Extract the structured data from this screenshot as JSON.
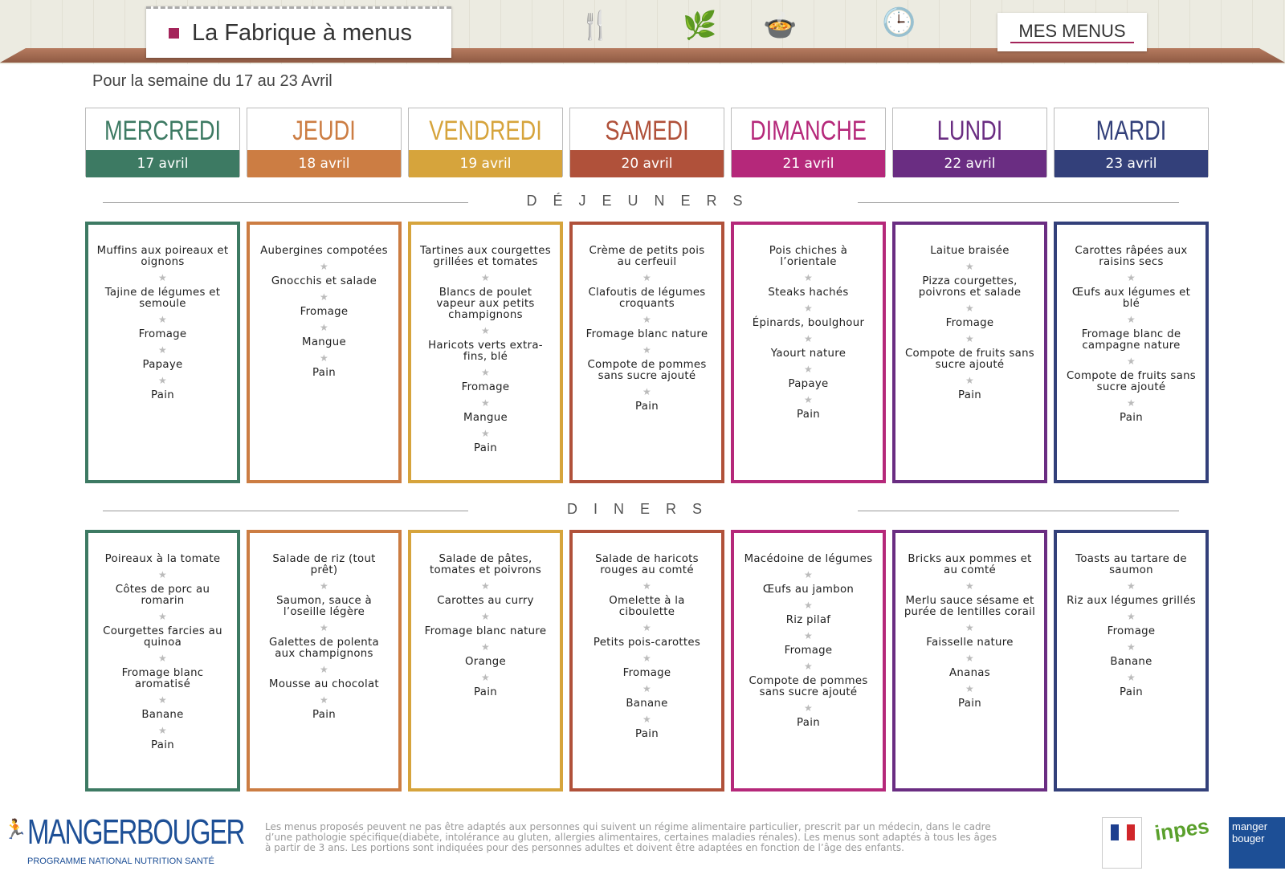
{
  "header": {
    "title": "La Fabrique à menus",
    "mes_menus": "MES MENUS"
  },
  "week_label": "Pour la semaine du 17 au 23 Avril",
  "sections": {
    "lunch": "DÉJEUNERS",
    "dinner": "DINERS"
  },
  "star": "★",
  "days": [
    {
      "name": "MERCREDI",
      "date": "17 avril",
      "color": "#3d7a63",
      "lunch": [
        "Muffins aux poireaux et oignons",
        "Tajine de légumes et semoule",
        "Fromage",
        "Papaye",
        "Pain"
      ],
      "dinner": [
        "Poireaux à la tomate",
        "Côtes de porc au romarin",
        "Courgettes farcies au quinoa",
        "Fromage blanc aromatisé",
        "Banane",
        "Pain"
      ]
    },
    {
      "name": "JEUDI",
      "date": "18 avril",
      "color": "#cc7d43",
      "lunch": [
        "Aubergines compotées",
        "Gnocchis et salade",
        "Fromage",
        "Mangue",
        "Pain"
      ],
      "dinner": [
        "Salade de riz (tout prêt)",
        "Saumon, sauce à l’oseille légère",
        "Galettes de polenta aux champignons",
        "Mousse au chocolat",
        "Pain"
      ]
    },
    {
      "name": "VENDREDI",
      "date": "19 avril",
      "color": "#d6a43c",
      "lunch": [
        "Tartines aux courgettes grillées et tomates",
        "Blancs de poulet vapeur aux petits champignons",
        "Haricots verts extra-fins, blé",
        "Fromage",
        "Mangue",
        "Pain"
      ],
      "dinner": [
        "Salade de pâtes, tomates et poivrons",
        "Carottes au curry",
        "Fromage blanc nature",
        "Orange",
        "Pain"
      ]
    },
    {
      "name": "SAMEDI",
      "date": "20 avril",
      "color": "#b0513a",
      "lunch": [
        "Crème de petits pois au cerfeuil",
        "Clafoutis de légumes croquants",
        "Fromage blanc nature",
        "Compote de pommes sans sucre ajouté",
        "Pain"
      ],
      "dinner": [
        "Salade de haricots rouges au comté",
        "Omelette à la ciboulette",
        "Petits pois-carottes",
        "Fromage",
        "Banane",
        "Pain"
      ]
    },
    {
      "name": "DIMANCHE",
      "date": "21 avril",
      "color": "#b5287a",
      "lunch": [
        "Pois chiches à l’orientale",
        "Steaks hachés",
        "Épinards, boulghour",
        "Yaourt nature",
        "Papaye",
        "Pain"
      ],
      "dinner": [
        "Macédoine de légumes",
        "Œufs au jambon",
        "Riz pilaf",
        "Fromage",
        "Compote de pommes sans sucre ajouté",
        "Pain"
      ]
    },
    {
      "name": "LUNDI",
      "date": "22 avril",
      "color": "#6a2d82",
      "lunch": [
        "Laitue braisée",
        "Pizza courgettes, poivrons et salade",
        "Fromage",
        "Compote de fruits sans sucre ajouté",
        "Pain"
      ],
      "dinner": [
        "Bricks aux pommes et au comté",
        "Merlu sauce sésame et purée de lentilles corail",
        "Faisselle nature",
        "Ananas",
        "Pain"
      ]
    },
    {
      "name": "MARDI",
      "date": "23 avril",
      "color": "#33407a",
      "lunch": [
        "Carottes râpées aux raisins secs",
        "Œufs aux légumes et blé",
        "Fromage blanc de campagne nature",
        "Compote de fruits sans sucre ajouté",
        "Pain"
      ],
      "dinner": [
        "Toasts au tartare de saumon",
        "Riz aux légumes grillés",
        "Fromage",
        "Banane",
        "Pain"
      ]
    }
  ],
  "footer": {
    "disclaimer": "Les menus proposés peuvent ne pas être adaptés aux personnes qui suivent un régime alimentaire particulier, prescrit par un médecin, dans le cadre d’une pathologie spécifique(diabète, intolérance au gluten, allergies alimentaires, certaines maladies rénales). Les menus sont adaptés à tous les âges à partir de 3 ans. Les portions sont indiquées pour des personnes adultes et doivent être adaptées en fonction de l’âge des enfants.",
    "logo_main": "MANGERBOUGER",
    "logo_sub": "PROGRAMME NATIONAL NUTRITION SANTÉ",
    "partner_inpes": "inpes",
    "partner_mb": "manger bouger"
  }
}
